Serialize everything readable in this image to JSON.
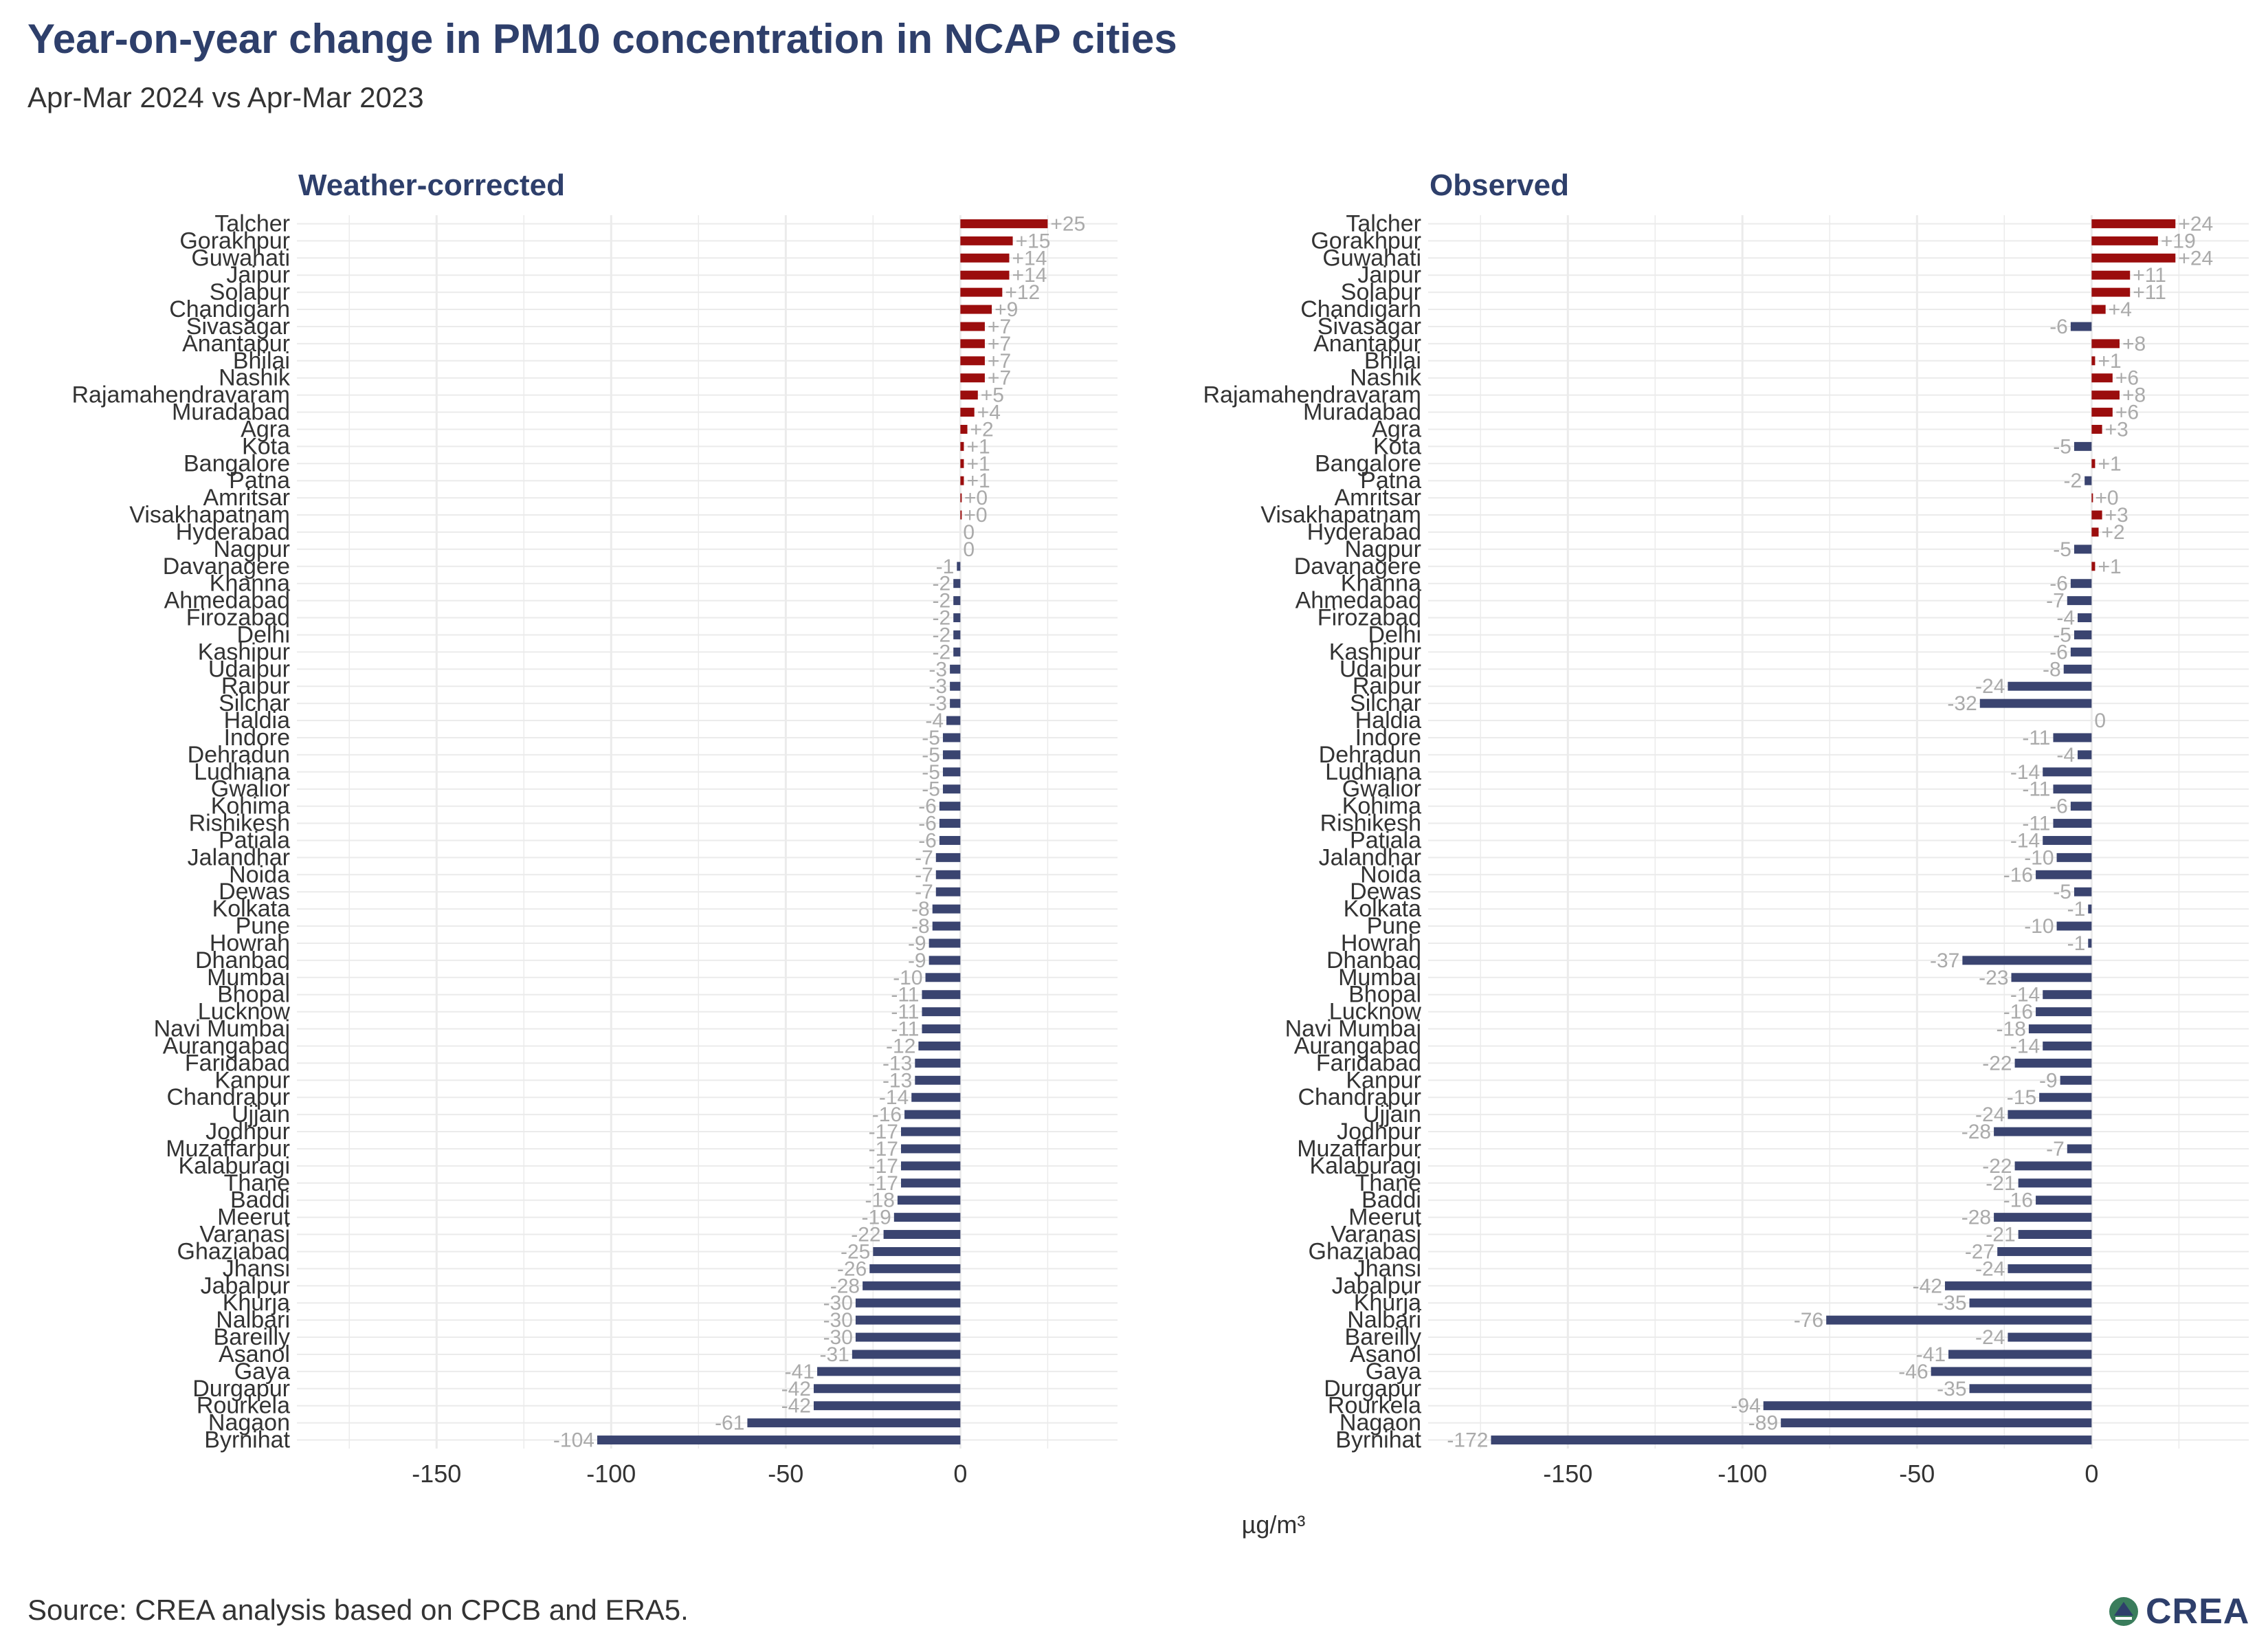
{
  "title": "Year-on-year change in PM10 concentration in NCAP cities",
  "subtitle": "Apr-Mar 2024 vs Apr-Mar 2023",
  "source": "Source: CREA analysis based on CPCB and ERA5.",
  "logo": "CREA",
  "colors": {
    "positive": "#9b0d0d",
    "negative": "#3a4470",
    "title": "#2e3f6b",
    "value_label": "#aaaaaa",
    "grid": "#ebebeb"
  },
  "chart_data": {
    "type": "bar",
    "orientation": "horizontal",
    "x_label": "µg/m³",
    "x_ticks": [
      -150,
      -100,
      -50,
      0
    ],
    "xlim": [
      -190,
      45
    ],
    "grid": true,
    "categories": [
      "Talcher",
      "Gorakhpur",
      "Guwahati",
      "Jaipur",
      "Solapur",
      "Chandigarh",
      "Sivasagar",
      "Anantapur",
      "Bhilai",
      "Nashik",
      "Rajamahendravaram",
      "Muradabad",
      "Agra",
      "Kota",
      "Bangalore",
      "Patna",
      "Amritsar",
      "Visakhapatnam",
      "Hyderabad",
      "Nagpur",
      "Davanagere",
      "Khanna",
      "Ahmedabad",
      "Firozabad",
      "Delhi",
      "Kashipur",
      "Udaipur",
      "Raipur",
      "Silchar",
      "Haldia",
      "Indore",
      "Dehradun",
      "Ludhiana",
      "Gwalior",
      "Kohima",
      "Rishikesh",
      "Patiala",
      "Jalandhar",
      "Noida",
      "Dewas",
      "Kolkata",
      "Pune",
      "Howrah",
      "Dhanbad",
      "Mumbai",
      "Bhopal",
      "Lucknow",
      "Navi Mumbai",
      "Aurangabad",
      "Faridabad",
      "Kanpur",
      "Chandrapur",
      "Ujjain",
      "Jodhpur",
      "Muzaffarpur",
      "Kalaburagi",
      "Thane",
      "Baddi",
      "Meerut",
      "Varanasi",
      "Ghaziabad",
      "Jhansi",
      "Jabalpur",
      "Khurja",
      "Nalbari",
      "Bareilly",
      "Asanol",
      "Gaya",
      "Durgapur",
      "Rourkela",
      "Nagaon",
      "Byrnihat"
    ],
    "panels": [
      {
        "title": "Weather-corrected",
        "values": [
          25,
          15,
          14,
          14,
          12,
          9,
          7,
          7,
          7,
          7,
          5,
          4,
          2,
          1,
          1,
          1,
          0.3,
          0.2,
          0,
          0,
          -1,
          -2,
          -2,
          -2,
          -2,
          -2,
          -3,
          -3,
          -3,
          -4,
          -5,
          -5,
          -5,
          -5,
          -6,
          -6,
          -6,
          -7,
          -7,
          -7,
          -8,
          -8,
          -9,
          -9,
          -10,
          -11,
          -11,
          -11,
          -12,
          -13,
          -13,
          -14,
          -16,
          -17,
          -17,
          -17,
          -17,
          -18,
          -19,
          -22,
          -25,
          -26,
          -28,
          -30,
          -30,
          -30,
          -31,
          -41,
          -42,
          -42,
          -61,
          -104
        ],
        "labels": [
          "+25",
          "+15",
          "+14",
          "+14",
          "+12",
          "+9",
          "+7",
          "+7",
          "+7",
          "+7",
          "+5",
          "+4",
          "+2",
          "+1",
          "+1",
          "+1",
          "+0",
          "+0",
          "0",
          "0",
          "-1",
          "-2",
          "-2",
          "-2",
          "-2",
          "-2",
          "-3",
          "-3",
          "-3",
          "-4",
          "-5",
          "-5",
          "-5",
          "-5",
          "-6",
          "-6",
          "-6",
          "-7",
          "-7",
          "-7",
          "-8",
          "-8",
          "-9",
          "-9",
          "-10",
          "-11",
          "-11",
          "-11",
          "-12",
          "-13",
          "-13",
          "-14",
          "-16",
          "-17",
          "-17",
          "-17",
          "-17",
          "-18",
          "-19",
          "-22",
          "-25",
          "-26",
          "-28",
          "-30",
          "-30",
          "-30",
          "-31",
          "-41",
          "-42",
          "-42",
          "-61",
          "-104"
        ]
      },
      {
        "title": "Observed",
        "values": [
          24,
          19,
          24,
          11,
          11,
          4,
          -6,
          8,
          1,
          6,
          8,
          6,
          3,
          -5,
          1,
          -2,
          0.2,
          3,
          2,
          -5,
          1,
          -6,
          -7,
          -4,
          -5,
          -6,
          -8,
          -24,
          -32,
          0,
          -11,
          -4,
          -14,
          -11,
          -6,
          -11,
          -14,
          -10,
          -16,
          -5,
          -1,
          -10,
          -1,
          -37,
          -23,
          -14,
          -16,
          -18,
          -14,
          -22,
          -9,
          -15,
          -24,
          -28,
          -7,
          -22,
          -21,
          -16,
          -28,
          -21,
          -27,
          -24,
          -42,
          -35,
          -76,
          -24,
          -41,
          -46,
          -35,
          -94,
          -89,
          -172
        ],
        "labels": [
          "+24",
          "+19",
          "+24",
          "+11",
          "+11",
          "+4",
          "-6",
          "+8",
          "+1",
          "+6",
          "+8",
          "+6",
          "+3",
          "-5",
          "+1",
          "-2",
          "+0",
          "+3",
          "+2",
          "-5",
          "+1",
          "-6",
          "-7",
          "-4",
          "-5",
          "-6",
          "-8",
          "-24",
          "-32",
          "0",
          "-11",
          "-4",
          "-14",
          "-11",
          "-6",
          "-11",
          "-14",
          "-10",
          "-16",
          "-5",
          "-1",
          "-10",
          "-1",
          "-37",
          "-23",
          "-14",
          "-16",
          "-18",
          "-14",
          "-22",
          "-9",
          "-15",
          "-24",
          "-28",
          "-7",
          "-22",
          "-21",
          "-16",
          "-28",
          "-21",
          "-27",
          "-24",
          "-42",
          "-35",
          "-76",
          "-24",
          "-41",
          "-46",
          "-35",
          "-94",
          "-89",
          "-172"
        ]
      }
    ]
  }
}
